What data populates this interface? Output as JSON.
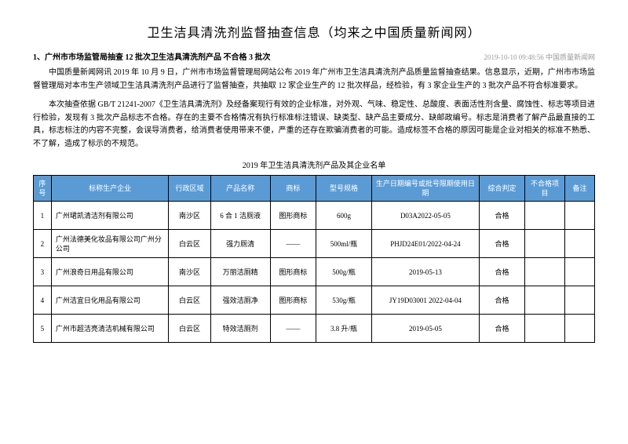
{
  "title": "卫生洁具清洗剂监督抽查信息（均来之中国质量新闻网）",
  "subtitle": "1、广州市市场监管局抽查 12 批次卫生洁具清洗剂产品 不合格 3 批次",
  "subtitle_meta": "2019-10-10 09:48:56 中国质量新闻网",
  "para1": "中国质量新闻网讯 2019 年 10 月 9 日，广州市市场监督管理局网站公布 2019 年广州市卫生洁具清洗剂产品质量监督抽查结果。信息显示，近期，广州市市场监督管理局对本市生产领域卫生洁具清洗剂产品进行了监督抽查，共抽取 12 家企业生产的 12 批次样品，经检验，有 3 家企业生产的 3 批次产品不符合标准要求。",
  "para2": "本次抽查依据 GB/T 21241-2007《卫生洁具清洗剂》及经备案现行有效的企业标准，对外观、气味、稳定性、总酸度、表面活性剂含量、腐蚀性、标志等项目进行检验，发现有 3 批次产品标志不合格。存在的主要不合格情况有执行标准标注错误、缺类型、缺产品主要成分、缺邮政编号。标志是消费者了解产品最直接的工具，标志标注的内容不完整，会误导消费者，给消费者使用带来不便，严重的还存在欺骗消费者的可能。造成标签不合格的原因可能是企业对相关的标准不熟悉、不了解，造成了标示的不规范。",
  "table_caption": "2019 年卫生洁具清洗剂产品及其企业名单",
  "columns": {
    "seq": "序号",
    "company": "标称生产企业",
    "region": "行政区域",
    "product": "产品名称",
    "brand": "商标",
    "spec": "型号规格",
    "batch": "生产日期编号或批号限期使用日期",
    "judge": "综合判定",
    "fail": "不合格项目",
    "note": "备注"
  },
  "rows": [
    {
      "seq": "1",
      "company": "广州珺凯清洁剂有限公司",
      "region": "南沙区",
      "product": "6 合 1 洁厕液",
      "brand": "图形商标",
      "spec": "600g",
      "batch": "D03A2022-05-05",
      "judge": "合格",
      "fail": "",
      "note": ""
    },
    {
      "seq": "2",
      "company": "广州法德美化妆品有限公司广州分公司",
      "region": "白云区",
      "product": "强力厕清",
      "brand": "——",
      "spec": "500ml/瓶",
      "batch": "PHJD24E01/2022-04-24",
      "judge": "合格",
      "fail": "",
      "note": ""
    },
    {
      "seq": "3",
      "company": "广州浪奇日用品有限公司",
      "region": "南沙区",
      "product": "万丽洁厕精",
      "brand": "图形商标",
      "spec": "500g/瓶",
      "batch": "2019-05-13",
      "judge": "合格",
      "fail": "",
      "note": ""
    },
    {
      "seq": "4",
      "company": "广州洁宜日化用品有限公司",
      "region": "白云区",
      "product": "强效洁厕净",
      "brand": "图形商标",
      "spec": "530g/瓶",
      "batch": "JY19D03001 2022-04-04",
      "judge": "合格",
      "fail": "",
      "note": ""
    },
    {
      "seq": "5",
      "company": "广州市超洁亮清洁机械有限公司",
      "region": "白云区",
      "product": "特效洁厕剂",
      "brand": "——",
      "spec": "3.8 升/瓶",
      "batch": "2019-05-05",
      "judge": "合格",
      "fail": "",
      "note": ""
    }
  ],
  "styling": {
    "header_bg": "#5b9bd5",
    "header_fg": "#ffffff",
    "border_color": "#000000",
    "body_font": "SimSun",
    "title_fontsize": 16,
    "cell_fontsize": 9,
    "para_fontsize": 10,
    "meta_color": "#999999"
  }
}
